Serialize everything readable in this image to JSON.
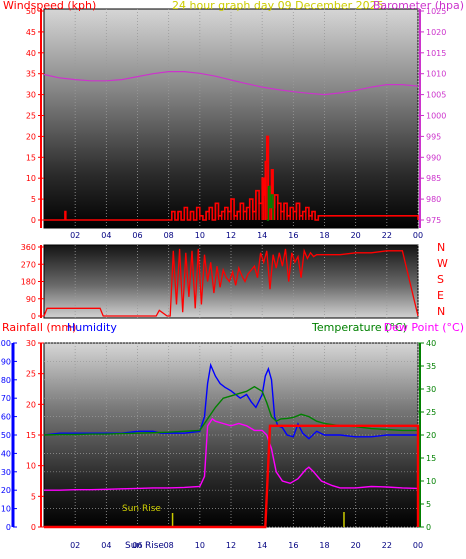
{
  "colors": {
    "wind": "#ff0000",
    "gust_green": "#008000",
    "barometer": "#cc33cc",
    "title": "#ffff00",
    "winddir": "#ff0000",
    "humidity": "#0000ff",
    "humidity_axis": "#0000ff",
    "temperature": "#008000",
    "dewpoint": "#ff00ff",
    "rainfall": "#ff0000",
    "rain_axis": "#ff0000",
    "sun": "#cccc00",
    "x_tick_label": "#000080"
  },
  "chart_data": [
    {
      "type": "line",
      "title": "24 hour graph day   09 December 2025",
      "left_axis_label": "Windspeed (kph)",
      "right_axis_label": "Barometer (hpa)",
      "y_left_lim": [
        0,
        50
      ],
      "y_left_ticks": [
        "0",
        "5",
        "10",
        "15",
        "20",
        "25",
        "30",
        "35",
        "40",
        "45",
        "50"
      ],
      "y_right_lim": [
        975,
        1025
      ],
      "y_right_ticks": [
        "975",
        "980",
        "985",
        "990",
        "995",
        "1000",
        "1005",
        "1010",
        "1015",
        "1020",
        "1025"
      ],
      "x_ticks": [
        "02",
        "04",
        "06",
        "08",
        "10",
        "12",
        "14",
        "16",
        "18",
        "20",
        "22",
        "00"
      ],
      "xlim_hours": [
        0,
        24
      ],
      "series": [
        {
          "key": "barometer",
          "x": [
            0,
            1,
            2,
            3,
            4,
            5,
            6,
            7,
            8,
            9,
            10,
            11,
            12,
            13,
            14,
            15,
            16,
            17,
            18,
            19,
            20,
            21,
            22,
            23,
            24
          ],
          "y": [
            1009.8,
            1009.0,
            1008.6,
            1008.3,
            1008.3,
            1008.6,
            1009.3,
            1010.0,
            1010.5,
            1010.5,
            1010.1,
            1009.4,
            1008.5,
            1007.6,
            1006.8,
            1006.2,
            1005.7,
            1005.3,
            1005.0,
            1005.4,
            1006.0,
            1006.8,
            1007.4,
            1007.4,
            1007.0
          ]
        },
        {
          "key": "windspeed",
          "x": [
            0,
            1.3,
            1.35,
            1.4,
            8,
            8.2,
            8.4,
            8.6,
            8.8,
            9,
            9.2,
            9.4,
            9.6,
            9.8,
            10,
            10.2,
            10.4,
            10.6,
            10.8,
            11,
            11.2,
            11.4,
            11.6,
            11.8,
            12,
            12.2,
            12.4,
            12.6,
            12.8,
            13,
            13.2,
            13.4,
            13.6,
            13.8,
            14,
            14.1,
            14.2,
            14.3,
            14.4,
            14.5,
            14.6,
            14.7,
            14.8,
            15,
            15.2,
            15.4,
            15.6,
            15.8,
            16,
            16.2,
            16.4,
            16.6,
            16.8,
            17,
            17.2,
            17.4,
            17.6,
            24
          ],
          "y": [
            0,
            0,
            2,
            0,
            0,
            2,
            0,
            2,
            0,
            3,
            0,
            2,
            0,
            3,
            1,
            0,
            2,
            3,
            0,
            4,
            1,
            2,
            3,
            2,
            5,
            1,
            2,
            4,
            2,
            3,
            5,
            2,
            7,
            4,
            10,
            6,
            14,
            20,
            8,
            5,
            12,
            3,
            6,
            4,
            2,
            4,
            1,
            3,
            2,
            4,
            1,
            2,
            3,
            1,
            2,
            0,
            1,
            0
          ]
        },
        {
          "key": "gust_green",
          "x": [
            14.3,
            14.4,
            14.5,
            14.6,
            14.7
          ],
          "y": [
            0,
            8,
            3,
            6,
            0
          ]
        }
      ]
    },
    {
      "type": "line",
      "y_lim": [
        0,
        360
      ],
      "y_ticks": [
        "0",
        "90",
        "180",
        "270",
        "360"
      ],
      "compass_labels": [
        "N",
        "W",
        "S",
        "E",
        "N"
      ],
      "series": [
        {
          "key": "winddir",
          "x": [
            0,
            0.2,
            0.4,
            3.6,
            3.8,
            7.2,
            7.4,
            7.9,
            8.1,
            8.3,
            8.5,
            8.7,
            8.9,
            9.1,
            9.3,
            9.5,
            9.7,
            9.9,
            10.1,
            10.3,
            10.5,
            10.7,
            10.9,
            11.1,
            11.3,
            11.5,
            11.7,
            11.9,
            12.1,
            12.3,
            12.5,
            12.7,
            12.9,
            13.1,
            13.3,
            13.5,
            13.7,
            13.9,
            14.1,
            14.3,
            14.5,
            14.7,
            14.9,
            15.1,
            15.3,
            15.5,
            15.7,
            15.9,
            16.1,
            16.3,
            16.5,
            16.7,
            16.9,
            17.1,
            17.3,
            17.5,
            17.7,
            19,
            20,
            21,
            22,
            23,
            24
          ],
          "y": [
            0,
            40,
            40,
            40,
            0,
            0,
            30,
            0,
            0,
            340,
            60,
            350,
            20,
            330,
            100,
            340,
            40,
            350,
            60,
            320,
            180,
            280,
            120,
            260,
            150,
            240,
            200,
            180,
            230,
            160,
            250,
            210,
            180,
            220,
            240,
            260,
            200,
            330,
            280,
            340,
            140,
            320,
            250,
            330,
            260,
            350,
            180,
            330,
            280,
            310,
            200,
            340,
            300,
            330,
            310,
            320,
            320,
            320,
            330,
            330,
            340,
            340,
            0
          ]
        }
      ]
    },
    {
      "type": "line",
      "left_axis_label": "Rainfall (mm)",
      "humidity_axis_label": "Humidity",
      "right_axis_label": "Temperature (°C)",
      "right_axis_label2": "Dew Point (°C)",
      "rain_lim": [
        0,
        30
      ],
      "rain_ticks": [
        "0",
        "5",
        "10",
        "15",
        "20",
        "25",
        "30"
      ],
      "humidity_lim": [
        0,
        100
      ],
      "humidity_ticks": [
        "0",
        "10",
        "20",
        "30",
        "40",
        "50",
        "60",
        "70",
        "80",
        "90",
        "100"
      ],
      "temp_lim": [
        0,
        40
      ],
      "temp_ticks": [
        "0",
        "5",
        "10",
        "15",
        "20",
        "25",
        "30",
        "35",
        "40"
      ],
      "x_ticks": [
        "02",
        "04",
        "06",
        "08",
        "10",
        "12",
        "14",
        "16",
        "18",
        "20",
        "22",
        "00"
      ],
      "sun_rise_label": "Sun Rise",
      "sun_set_label": "Sun Rise",
      "series": [
        {
          "key": "humidity",
          "x": [
            0,
            1,
            2,
            3,
            4,
            5,
            6,
            7,
            7.5,
            8,
            9,
            10,
            10.3,
            10.5,
            10.7,
            11,
            11.3,
            11.6,
            12,
            12.3,
            12.6,
            13,
            13.3,
            13.6,
            14,
            14.2,
            14.4,
            14.6,
            14.8,
            15,
            15.3,
            15.6,
            16,
            16.3,
            16.6,
            17,
            17.5,
            18,
            19,
            20,
            21,
            22,
            23,
            24
          ],
          "y": [
            50,
            51,
            51,
            51,
            51,
            51,
            52,
            52,
            51,
            51,
            51,
            52,
            60,
            78,
            88,
            82,
            78,
            76,
            74,
            72,
            70,
            72,
            68,
            65,
            72,
            82,
            86,
            80,
            60,
            55,
            54,
            50,
            49,
            56,
            51,
            48,
            52,
            50,
            50,
            49,
            49,
            50,
            50,
            50
          ]
        },
        {
          "key": "temperature",
          "x": [
            0,
            1,
            2,
            3,
            4,
            5,
            6,
            7,
            8,
            9,
            10,
            10.5,
            11,
            11.5,
            12,
            12.5,
            13,
            13.5,
            14,
            14.3,
            14.6,
            14.9,
            15.2,
            15.6,
            16,
            16.5,
            17,
            17.5,
            18,
            19,
            20,
            21,
            22,
            23,
            24
          ],
          "y": [
            20.0,
            20.1,
            20.1,
            20.2,
            20.2,
            20.3,
            20.4,
            20.5,
            20.6,
            20.8,
            21.0,
            23.5,
            26.0,
            28.0,
            28.5,
            29.0,
            29.5,
            30.5,
            29.5,
            27.0,
            24.0,
            23.0,
            23.5,
            23.6,
            23.8,
            24.5,
            24.0,
            23.0,
            22.5,
            22.0,
            21.8,
            21.4,
            21.2,
            21.0,
            21.0
          ]
        },
        {
          "key": "dewpoint",
          "x": [
            0,
            1,
            2,
            3,
            4,
            5,
            6,
            7,
            8,
            9,
            10,
            10.3,
            10.5,
            10.8,
            11,
            11.5,
            12,
            12.5,
            13,
            13.5,
            14,
            14.3,
            14.6,
            14.9,
            15.3,
            15.8,
            16.3,
            16.8,
            17,
            17.3,
            17.8,
            18.5,
            19,
            20,
            21,
            22,
            23,
            24
          ],
          "y": [
            8.0,
            8.0,
            8.1,
            8.1,
            8.2,
            8.3,
            8.4,
            8.5,
            8.5,
            8.6,
            8.8,
            11,
            22,
            23.5,
            23,
            22.5,
            22,
            22.5,
            22,
            21,
            21,
            20,
            17,
            12,
            10,
            9.5,
            10.5,
            12.5,
            13,
            12,
            10,
            9,
            8.5,
            8.5,
            8.8,
            8.7,
            8.5,
            8.4
          ]
        },
        {
          "key": "rainfall",
          "x": [
            0,
            14.2,
            14.5,
            15,
            20,
            24,
            24
          ],
          "y": [
            0,
            0,
            16.5,
            16.5,
            16.5,
            16.5,
            0
          ]
        }
      ]
    }
  ]
}
